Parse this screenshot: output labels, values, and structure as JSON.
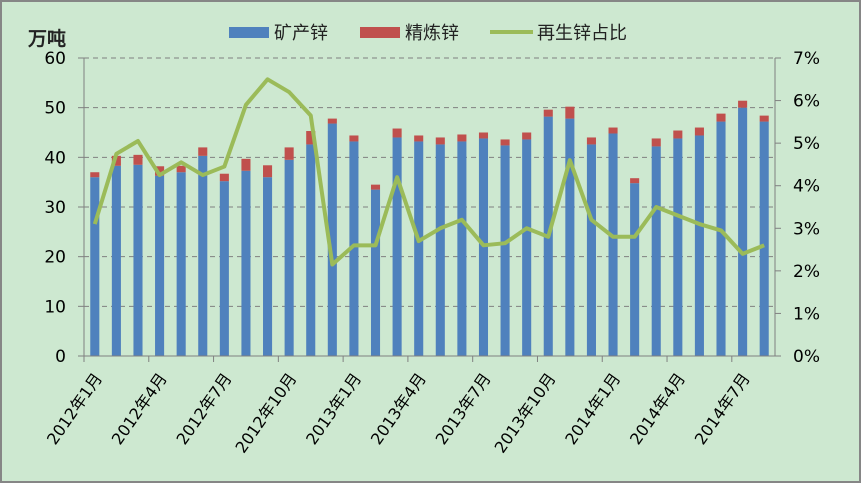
{
  "chart_data": {
    "type": "bar",
    "subtype": "stacked bar + line (secondary axis)",
    "title": "",
    "ylabel": "万吨",
    "ylabel_right": "",
    "ylim": [
      0,
      60
    ],
    "ylim_right": [
      0,
      7
    ],
    "yticks": [
      "0",
      "10",
      "20",
      "30",
      "40",
      "50",
      "60"
    ],
    "yticks_right": [
      "0%",
      "1%",
      "2%",
      "3%",
      "4%",
      "5%",
      "6%",
      "7%"
    ],
    "grid": true,
    "legend_position": "top",
    "legend": [
      "矿产锌",
      "精炼锌",
      "再生锌占比"
    ],
    "x_tick_labels": [
      "2012年1月",
      "2012年4月",
      "2012年7月",
      "2012年10月",
      "2013年1月",
      "2013年4月",
      "2013年7月",
      "2013年10月",
      "2014年1月",
      "2014年4月",
      "2014年7月"
    ],
    "categories": [
      "2012-01",
      "2012-02",
      "2012-03",
      "2012-04",
      "2012-05",
      "2012-06",
      "2012-07",
      "2012-08",
      "2012-09",
      "2012-10",
      "2012-11",
      "2012-12",
      "2013-01",
      "2013-02",
      "2013-03",
      "2013-04",
      "2013-05",
      "2013-06",
      "2013-07",
      "2013-08",
      "2013-09",
      "2013-10",
      "2013-11",
      "2013-12",
      "2014-01",
      "2014-02",
      "2014-03",
      "2014-04",
      "2014-05",
      "2014-06",
      "2014-07",
      "2014-08"
    ],
    "series": [
      {
        "name": "矿产锌",
        "type": "bar",
        "color": "#4f81bd",
        "axis": "left",
        "values": [
          36.0,
          38.3,
          38.5,
          36.3,
          37.0,
          40.3,
          35.2,
          37.3,
          36.0,
          39.5,
          42.6,
          46.8,
          43.2,
          33.5,
          44.0,
          43.2,
          42.6,
          43.2,
          43.8,
          42.4,
          43.6,
          48.2,
          47.8,
          42.6,
          44.8,
          34.8,
          42.2,
          43.8,
          44.4,
          47.2,
          50.0,
          47.2
        ]
      },
      {
        "name": "精炼锌",
        "type": "bar",
        "color": "#c0504d",
        "axis": "left",
        "values": [
          1.0,
          2.0,
          2.0,
          1.9,
          1.3,
          1.7,
          1.5,
          2.4,
          2.4,
          2.5,
          2.7,
          1.0,
          1.2,
          1.0,
          1.8,
          1.2,
          1.4,
          1.4,
          1.2,
          1.2,
          1.4,
          1.4,
          2.4,
          1.4,
          1.2,
          1.0,
          1.6,
          1.6,
          1.6,
          1.6,
          1.4,
          1.2
        ]
      },
      {
        "name": "再生锌占比",
        "type": "line",
        "color": "#9bbb59",
        "axis": "right",
        "unit": "%",
        "values": [
          3.1,
          4.75,
          5.05,
          4.25,
          4.55,
          4.25,
          4.45,
          5.9,
          6.5,
          6.2,
          5.65,
          2.15,
          2.6,
          2.6,
          4.2,
          2.7,
          3.0,
          3.2,
          2.6,
          2.65,
          3.0,
          2.8,
          4.6,
          3.2,
          2.8,
          2.8,
          3.5,
          3.3,
          3.1,
          2.95,
          2.4,
          2.6
        ]
      }
    ]
  }
}
